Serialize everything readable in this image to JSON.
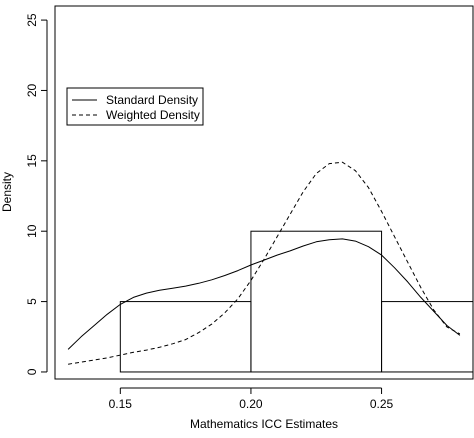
{
  "chart_data": {
    "type": "histogram with density curves",
    "xlabel": "Mathematics ICC Estimates",
    "ylabel": "Density",
    "xlim": [
      0.125,
      0.285
    ],
    "ylim": [
      -0.5,
      26.0
    ],
    "x_ticks": [
      0.15,
      0.2,
      0.25
    ],
    "x_tick_labels": [
      "0.15",
      "0.20",
      "0.25"
    ],
    "y_ticks": [
      0,
      5,
      10,
      15,
      20,
      25
    ],
    "y_tick_labels": [
      "0",
      "5",
      "10",
      "15",
      "20",
      "25"
    ],
    "bins": [
      {
        "start": 0.15,
        "end": 0.2,
        "density": 5
      },
      {
        "start": 0.2,
        "end": 0.25,
        "density": 10
      },
      {
        "start": 0.25,
        "end": 0.3,
        "density": 5
      }
    ],
    "series": [
      {
        "name": "Standard Density",
        "line": "solid",
        "x": [
          0.13,
          0.135,
          0.14,
          0.145,
          0.15,
          0.155,
          0.16,
          0.165,
          0.17,
          0.175,
          0.18,
          0.185,
          0.19,
          0.195,
          0.2,
          0.205,
          0.21,
          0.215,
          0.22,
          0.225,
          0.23,
          0.235,
          0.24,
          0.245,
          0.25,
          0.255,
          0.26,
          0.265,
          0.27,
          0.275,
          0.28
        ],
        "y": [
          1.6,
          2.5,
          3.3,
          4.1,
          4.8,
          5.3,
          5.6,
          5.8,
          5.95,
          6.1,
          6.3,
          6.55,
          6.85,
          7.2,
          7.6,
          7.95,
          8.3,
          8.6,
          8.95,
          9.25,
          9.4,
          9.45,
          9.3,
          8.9,
          8.3,
          7.4,
          6.4,
          5.3,
          4.3,
          3.3,
          2.6
        ]
      },
      {
        "name": "Weighted Density",
        "line": "dashed",
        "x": [
          0.13,
          0.135,
          0.14,
          0.145,
          0.15,
          0.155,
          0.16,
          0.165,
          0.17,
          0.175,
          0.18,
          0.185,
          0.19,
          0.195,
          0.2,
          0.205,
          0.21,
          0.215,
          0.22,
          0.225,
          0.23,
          0.235,
          0.24,
          0.245,
          0.25,
          0.255,
          0.26,
          0.265,
          0.27,
          0.275,
          0.28
        ],
        "y": [
          0.55,
          0.7,
          0.85,
          1.0,
          1.2,
          1.4,
          1.55,
          1.75,
          2.0,
          2.3,
          2.8,
          3.4,
          4.2,
          5.2,
          6.5,
          8.0,
          9.6,
          11.2,
          12.8,
          14.1,
          14.8,
          14.9,
          14.3,
          13.1,
          11.4,
          9.6,
          7.8,
          6.0,
          4.4,
          3.2,
          2.7
        ]
      }
    ],
    "legend_position": "top-left"
  }
}
